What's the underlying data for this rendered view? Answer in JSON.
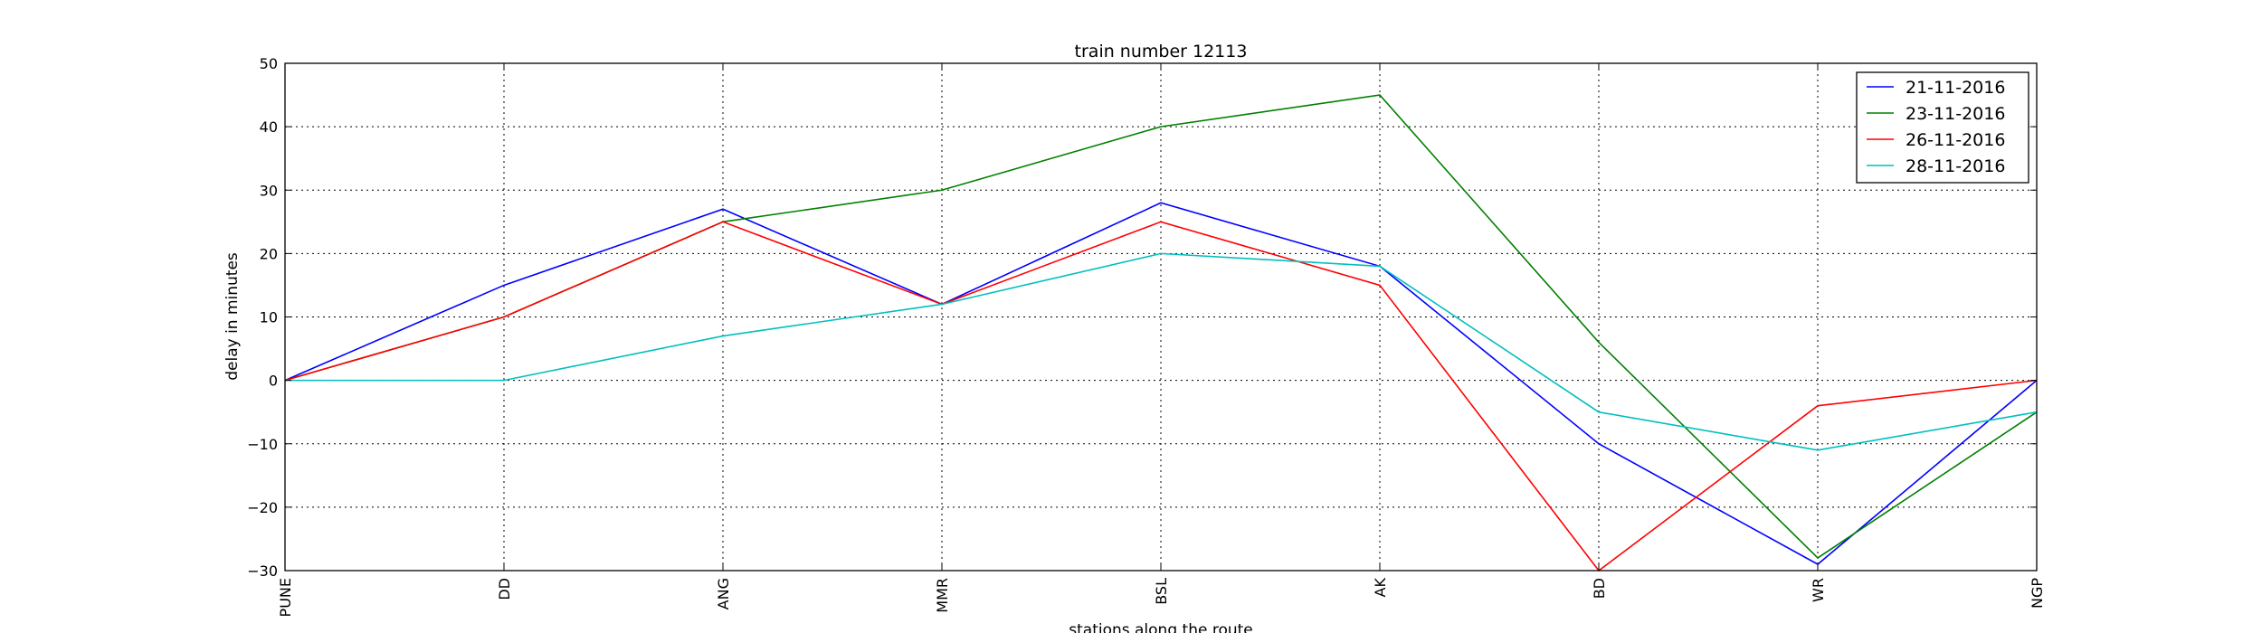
{
  "chart_data": {
    "type": "line",
    "title": "train number 12113",
    "xlabel": "stations along the route",
    "ylabel": "delay in minutes",
    "categories": [
      "PUNE",
      "DD",
      "ANG",
      "MMR",
      "BSL",
      "AK",
      "BD",
      "WR",
      "NGP"
    ],
    "ylim": [
      -30,
      50
    ],
    "yticks": [
      50,
      40,
      30,
      20,
      10,
      0,
      -10,
      -20,
      -30
    ],
    "ytick_labels": [
      "50",
      "40",
      "30",
      "20",
      "10",
      "0",
      "−10",
      "−20",
      "−30"
    ],
    "grid": true,
    "legend_position": "top-right",
    "series": [
      {
        "name": "21-11-2016",
        "color": "#0000ff",
        "values": [
          0,
          15,
          27,
          12,
          28,
          18,
          -10,
          -29,
          0
        ]
      },
      {
        "name": "23-11-2016",
        "color": "#008000",
        "values": [
          0,
          10,
          25,
          30,
          40,
          45,
          6,
          -28,
          -5
        ]
      },
      {
        "name": "26-11-2016",
        "color": "#ff0000",
        "values": [
          0,
          10,
          25,
          12,
          25,
          15,
          -30,
          -4,
          0
        ]
      },
      {
        "name": "28-11-2016",
        "color": "#00bfbf",
        "values": [
          0,
          0,
          7,
          12,
          20,
          18,
          -5,
          -11,
          -5
        ]
      }
    ]
  }
}
